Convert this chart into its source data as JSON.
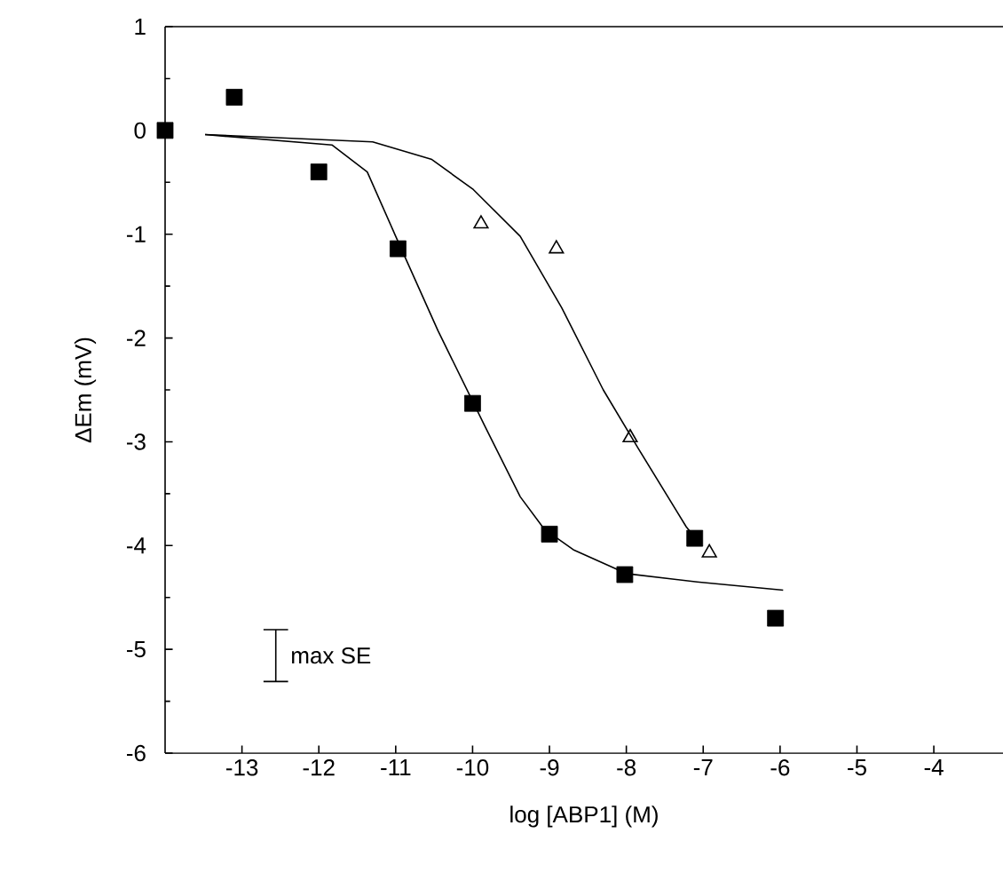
{
  "chart_data": {
    "type": "scatter",
    "xlabel": "log [ABP1] (M)",
    "ylabel": "ΔEm   (mV)",
    "xlim": [
      -14,
      -3.1
    ],
    "ylim": [
      -6,
      1
    ],
    "xticks": [
      -13,
      -12,
      -11,
      -10,
      -9,
      -8,
      -7,
      -6,
      -5,
      -4
    ],
    "yticks": [
      1,
      0,
      -1,
      -2,
      -3,
      -4,
      -5,
      -6
    ],
    "annotations": [
      "max SE"
    ],
    "series": [
      {
        "marker": "square",
        "color": "#000000",
        "x": [
          -14,
          -13.1,
          -12.0,
          -10.97,
          -10.0,
          -9.0,
          -8.02,
          -7.11,
          -6.06
        ],
        "values": [
          0,
          0.32,
          -0.4,
          -1.14,
          -2.63,
          -3.89,
          -4.28,
          -3.93,
          -4.7
        ]
      },
      {
        "marker": "triangle",
        "color": "#000000",
        "x": [
          -9.89,
          -8.91,
          -7.95,
          -6.92
        ],
        "values": [
          -0.9,
          -1.14,
          -2.96,
          -4.07
        ]
      },
      {
        "type": "line",
        "marker": "none",
        "color": "#000000",
        "x": [
          -13.48,
          -11.83,
          -11.37,
          -11.0,
          -10.45,
          -9.84,
          -9.38,
          -9.07,
          -8.69,
          -8.0,
          -7.08,
          -5.96
        ],
        "values": [
          -0.04,
          -0.14,
          -0.4,
          -1.02,
          -1.93,
          -2.85,
          -3.53,
          -3.84,
          -4.04,
          -4.27,
          -4.35,
          -4.43
        ]
      },
      {
        "type": "line",
        "marker": "none",
        "color": "#000000",
        "x": [
          -13.48,
          -11.3,
          -10.53,
          -9.99,
          -9.38,
          -8.84,
          -8.3,
          -7.84,
          -7.22,
          -7.03
        ],
        "values": [
          -0.04,
          -0.11,
          -0.28,
          -0.57,
          -1.02,
          -1.71,
          -2.5,
          -3.07,
          -3.82,
          -3.99
        ]
      }
    ],
    "grid": false
  }
}
